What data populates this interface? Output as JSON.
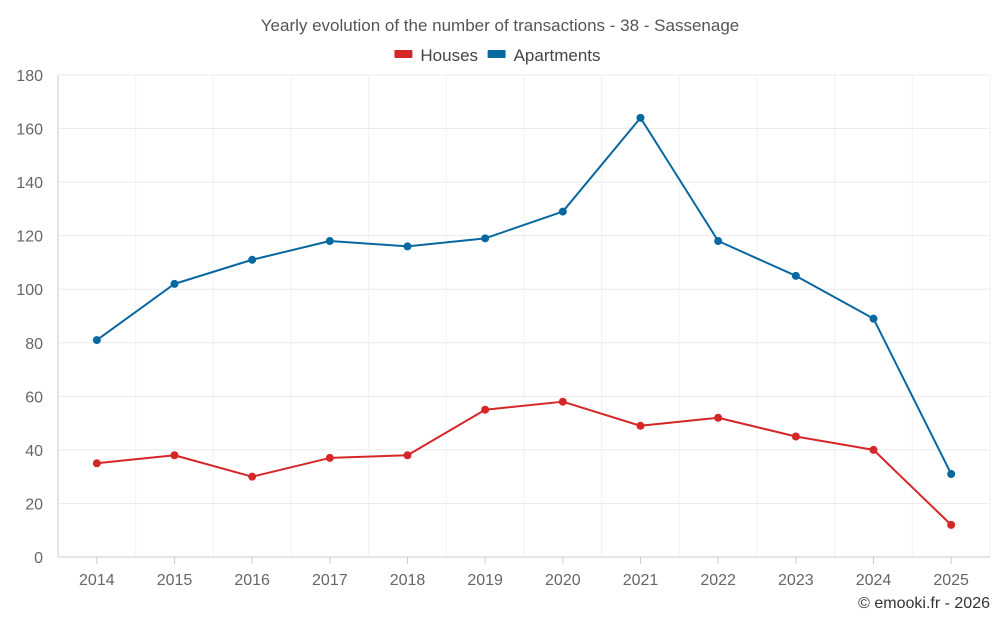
{
  "chart_data": {
    "type": "line",
    "title": "Yearly evolution of the number of transactions - 38 - Sassenage",
    "xlabel": "",
    "ylabel": "",
    "categories": [
      "2014",
      "2015",
      "2016",
      "2017",
      "2018",
      "2019",
      "2020",
      "2021",
      "2022",
      "2023",
      "2024",
      "2025"
    ],
    "series": [
      {
        "name": "Houses",
        "color": "#d62728",
        "values": [
          35,
          38,
          30,
          37,
          38,
          55,
          58,
          49,
          52,
          45,
          40,
          12
        ]
      },
      {
        "name": "Apartments",
        "color": "#0868a0",
        "values": [
          81,
          102,
          111,
          118,
          116,
          119,
          129,
          164,
          118,
          105,
          89,
          31
        ]
      }
    ],
    "ylim": [
      0,
      180
    ],
    "yticks": [
      0,
      20,
      40,
      60,
      80,
      100,
      120,
      140,
      160,
      180
    ],
    "grid": true,
    "legend_position": "top-center"
  },
  "credit": "© emooki.fr - 2026"
}
